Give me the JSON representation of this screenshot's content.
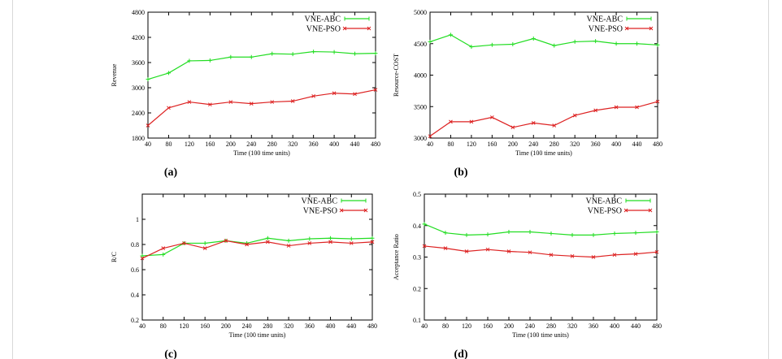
{
  "colors": {
    "abc": "#22dd22",
    "pso": "#dd2222"
  },
  "chart_data": [
    {
      "type": "line",
      "panel_label": "(a)",
      "xlabel": "Time (100 time units)",
      "ylabel": "Revenue",
      "x": [
        40,
        80,
        120,
        160,
        200,
        240,
        280,
        320,
        360,
        400,
        440,
        480
      ],
      "xlim": [
        40,
        480
      ],
      "ylim": [
        1800,
        4800
      ],
      "yticks": [
        1800,
        2400,
        3000,
        3600,
        4200,
        4800
      ],
      "legend": "top-right",
      "series": [
        {
          "name": "VNE-ABC",
          "values": [
            3200,
            3350,
            3640,
            3650,
            3730,
            3730,
            3810,
            3800,
            3860,
            3850,
            3810,
            3820
          ]
        },
        {
          "name": "VNE-PSO",
          "values": [
            2100,
            2520,
            2660,
            2600,
            2660,
            2620,
            2660,
            2680,
            2800,
            2870,
            2850,
            2950
          ]
        }
      ]
    },
    {
      "type": "line",
      "panel_label": "(b)",
      "xlabel": "Time (100 time units)",
      "ylabel": "Resource-COST",
      "x": [
        40,
        80,
        120,
        160,
        200,
        240,
        280,
        320,
        360,
        400,
        440,
        480
      ],
      "xlim": [
        40,
        480
      ],
      "ylim": [
        3000,
        5000
      ],
      "yticks": [
        3000,
        3500,
        4000,
        4500,
        5000
      ],
      "legend": "top-right",
      "series": [
        {
          "name": "VNE-ABC",
          "values": [
            4530,
            4640,
            4450,
            4480,
            4490,
            4580,
            4470,
            4530,
            4540,
            4500,
            4500,
            4480
          ]
        },
        {
          "name": "VNE-PSO",
          "values": [
            3030,
            3260,
            3260,
            3330,
            3170,
            3240,
            3200,
            3360,
            3440,
            3490,
            3490,
            3580
          ]
        }
      ]
    },
    {
      "type": "line",
      "panel_label": "(c)",
      "xlabel": "Time (100 time units)",
      "ylabel": "R/C",
      "x": [
        40,
        80,
        120,
        160,
        200,
        240,
        280,
        320,
        360,
        400,
        440,
        480
      ],
      "xlim": [
        40,
        480
      ],
      "ylim": [
        0.2,
        1.2
      ],
      "yticks": [
        0.2,
        0.4,
        0.6,
        0.8,
        1
      ],
      "legend": "top-right",
      "series": [
        {
          "name": "VNE-ABC",
          "values": [
            0.71,
            0.72,
            0.81,
            0.81,
            0.83,
            0.81,
            0.85,
            0.83,
            0.845,
            0.85,
            0.845,
            0.85
          ]
        },
        {
          "name": "VNE-PSO",
          "values": [
            0.69,
            0.77,
            0.81,
            0.77,
            0.83,
            0.8,
            0.82,
            0.79,
            0.81,
            0.82,
            0.81,
            0.82
          ]
        }
      ]
    },
    {
      "type": "line",
      "panel_label": "(d)",
      "xlabel": "Time (100 time units)",
      "ylabel": "Acceptance Ratio",
      "x": [
        40,
        80,
        120,
        160,
        200,
        240,
        280,
        320,
        360,
        400,
        440,
        480
      ],
      "xlim": [
        40,
        480
      ],
      "ylim": [
        0.1,
        0.5
      ],
      "yticks": [
        0.1,
        0.2,
        0.3,
        0.4,
        0.5
      ],
      "legend": "top-right",
      "series": [
        {
          "name": "VNE-ABC",
          "values": [
            0.405,
            0.377,
            0.37,
            0.372,
            0.38,
            0.38,
            0.375,
            0.37,
            0.37,
            0.375,
            0.377,
            0.38
          ]
        },
        {
          "name": "VNE-PSO",
          "values": [
            0.335,
            0.328,
            0.318,
            0.324,
            0.318,
            0.315,
            0.307,
            0.303,
            0.3,
            0.307,
            0.31,
            0.316
          ]
        }
      ]
    }
  ]
}
